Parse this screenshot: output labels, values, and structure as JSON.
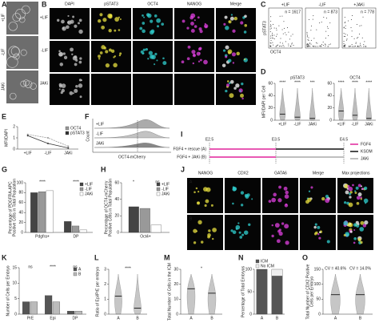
{
  "figure": {
    "letters": [
      "A",
      "B",
      "C",
      "D",
      "E",
      "F",
      "G",
      "H",
      "I",
      "J",
      "K",
      "L",
      "M",
      "N",
      "O"
    ],
    "a": {
      "rows": [
        "+LIF",
        "-LIF",
        "JAKi"
      ]
    },
    "b": {
      "columns": [
        "DAPI",
        "pSTAT3",
        "OCT4",
        "NANOG",
        "Merge"
      ],
      "rows": [
        "+LIF",
        "-LIF",
        "JAKi"
      ]
    },
    "c": {
      "plots": [
        {
          "title": "+LIF",
          "n": "n = 1617"
        },
        {
          "title": "-LIF",
          "n": "n = 873"
        },
        {
          "title": "+JAKi",
          "n": "n = 778"
        }
      ],
      "ylabel": "pSTAT3",
      "xlabel": "OCT4"
    },
    "f": {
      "rows": [
        "+LIF",
        "-LIF",
        "JAKi"
      ],
      "xlabel": "OCT4-mCherry",
      "ylabel": "Count"
    },
    "i": {
      "stages": [
        "E2.5",
        "E3.5",
        "E4.5"
      ],
      "conditions": [
        "FGF4 + rescue (A)",
        "FGF4 + JAKi (B)"
      ],
      "legend": [
        "FGF4",
        "KSOM",
        "JAKi"
      ]
    },
    "j": {
      "columns": [
        "NANOG",
        "CDX2",
        "GATA6",
        "Merge",
        "Max projections"
      ],
      "rows": [
        "A",
        "B"
      ]
    }
  },
  "chart_data": [
    {
      "type": "violin",
      "title": "pSTAT3",
      "ylabel": [
        "MFI/DAPI per Cell"
      ],
      "categories": [
        "+LIF",
        "-LIF",
        "JAKi"
      ],
      "values": [
        10,
        5,
        3
      ],
      "color": "#888888",
      "ylim": [
        0,
        60
      ],
      "yticks": [
        0,
        20,
        40,
        60
      ],
      "annotations": [
        "****",
        "****",
        "***"
      ]
    },
    {
      "type": "violin",
      "title": "OCT4",
      "ylabel": [
        "MFI/DAPI per Cell"
      ],
      "categories": [
        "+LIF",
        "-LIF",
        "JAKi"
      ],
      "values": [
        15,
        8,
        3
      ],
      "color": "#888888",
      "ylim": [
        0,
        60
      ],
      "yticks": [
        0,
        20,
        40,
        60
      ],
      "annotations": [
        "****",
        "****",
        "****"
      ]
    },
    {
      "type": "line",
      "ylabel": [
        "MFI/DAPI"
      ],
      "categories": [
        "+LIF",
        "-LIF",
        "JAKi"
      ],
      "series": [
        {
          "name": "OCT4",
          "color": "#999999",
          "values": [
            1.3,
            1.0,
            0.25
          ]
        },
        {
          "name": "pSTAT3",
          "color": "#333333",
          "values": [
            1.2,
            0.5,
            0.1
          ]
        }
      ],
      "ylim": [
        0,
        2
      ],
      "yticks": [
        0,
        1,
        2
      ]
    },
    {
      "type": "bar",
      "ylabel": [
        "Percentage of PDGFRA-APC",
        "Positive Cells in Total Population"
      ],
      "categories": [
        "Pdgfra+",
        "DP"
      ],
      "series": [
        {
          "name": "+LIF",
          "color": "#444444",
          "values": [
            80,
            22
          ]
        },
        {
          "name": "-LIF",
          "color": "#999999",
          "values": [
            82,
            13
          ]
        },
        {
          "name": "JAKi",
          "color": "#ffffff",
          "values": [
            84,
            5
          ]
        }
      ],
      "ylim": [
        0,
        100
      ],
      "yticks": [
        0,
        20,
        40,
        60,
        80,
        100
      ],
      "annotations": [
        "****",
        "****"
      ]
    },
    {
      "type": "bar",
      "ylabel": [
        "Percentage of OCT4-mCherry",
        "Positive Cells in Total Population"
      ],
      "categories": [
        "Oct4+"
      ],
      "series": [
        {
          "name": "+LIF",
          "color": "#444444",
          "values": [
            31
          ]
        },
        {
          "name": "-LIF",
          "color": "#999999",
          "values": [
            29
          ]
        },
        {
          "name": "JAKi",
          "color": "#ffffff",
          "values": [
            9
          ]
        }
      ],
      "ylim": [
        0,
        60
      ],
      "yticks": [
        0,
        20,
        40,
        60
      ],
      "annotations": [
        "*",
        "ns"
      ]
    },
    {
      "type": "bar",
      "ylabel": [
        "Number of Cells per Embryo"
      ],
      "categories": [
        "PrE",
        "Epi",
        "DP"
      ],
      "series": [
        {
          "name": "A",
          "color": "#555555",
          "values": [
            4,
            6,
            1
          ]
        },
        {
          "name": "B",
          "color": "#bbbbbb",
          "values": [
            4,
            4,
            1
          ]
        }
      ],
      "ylim": [
        0,
        15
      ],
      "yticks": [
        0,
        5,
        10,
        15
      ],
      "annotations": [
        "ns",
        "****",
        "ns"
      ]
    },
    {
      "type": "violin",
      "ylabel": [
        "Ratio of Epi/PrE per embryo"
      ],
      "categories": [
        "A",
        "B"
      ],
      "values": [
        1.2,
        0.4
      ],
      "color": "#999999",
      "ylim": [
        0,
        3
      ],
      "yticks": [
        0,
        1,
        2,
        3
      ],
      "annotations": [
        "****"
      ]
    },
    {
      "type": "violin",
      "ylabel": [
        "Total Number of Cells in the ICM"
      ],
      "categories": [
        "A",
        "B"
      ],
      "values": [
        17,
        14
      ],
      "color": "#999999",
      "ylim": [
        0,
        30
      ],
      "yticks": [
        0,
        10,
        20,
        30
      ],
      "annotations": [
        "*"
      ]
    },
    {
      "type": "stacked-bar",
      "ylabel": [
        "Percentage of Total Embryos"
      ],
      "categories": [
        "A",
        "B"
      ],
      "series": [
        {
          "name": "ICM",
          "color": "#555555",
          "values": [
            100,
            85
          ]
        },
        {
          "name": "No ICM",
          "color": "#eeeeee",
          "values": [
            0,
            15
          ]
        }
      ],
      "ylim": [
        0,
        100
      ],
      "yticks": [
        0,
        50,
        100
      ]
    },
    {
      "type": "violin",
      "ylabel": [
        "Total Number of CDX2 Positive",
        "Cells per Embryo"
      ],
      "categories": [
        "A",
        "B"
      ],
      "values": [
        65,
        65
      ],
      "color": "#999999",
      "ylim": [
        0,
        150
      ],
      "yticks": [
        0,
        50,
        100,
        150
      ],
      "annotations": [
        "CV = 40.6%",
        "CV = 14.0%"
      ]
    }
  ]
}
